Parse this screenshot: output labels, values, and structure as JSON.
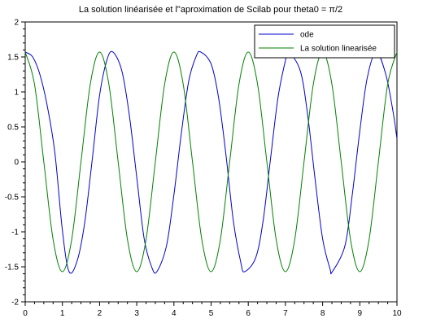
{
  "chart_data": {
    "type": "line",
    "title": "La solution linéarisée et l\"aproximation de Scilab pour theta0 = π/2",
    "xlabel": "",
    "ylabel": "",
    "xlim": [
      0,
      10
    ],
    "ylim": [
      -2,
      2
    ],
    "x_ticks": [
      "0",
      "1",
      "2",
      "3",
      "4",
      "5",
      "6",
      "7",
      "8",
      "9",
      "10"
    ],
    "y_ticks": [
      "2",
      "1.5",
      "1",
      "0.5",
      "0",
      "-0.5",
      "-1",
      "-1.5",
      "-2"
    ],
    "grid": false,
    "legend_position": "top-right",
    "series": [
      {
        "name": "ode",
        "color": "#0000cc",
        "x": [
          0,
          0.2,
          0.4,
          0.6,
          0.8,
          1.0,
          1.18,
          1.4,
          1.6,
          1.8,
          2.0,
          2.2,
          2.36,
          2.6,
          2.8,
          3.0,
          3.2,
          3.4,
          3.54,
          3.8,
          4.0,
          4.2,
          4.4,
          4.6,
          4.72,
          5.0,
          5.2,
          5.4,
          5.6,
          5.8,
          5.9,
          6.2,
          6.4,
          6.6,
          6.8,
          7.0,
          7.08,
          7.4,
          7.6,
          7.8,
          8.0,
          8.2,
          8.26,
          8.6,
          8.8,
          9.0,
          9.2,
          9.44,
          9.7,
          9.9,
          10.0
        ],
        "y": [
          1.57,
          1.5,
          1.24,
          0.78,
          0.12,
          -0.98,
          -1.57,
          -1.41,
          -0.87,
          0.02,
          0.95,
          1.46,
          1.57,
          1.3,
          0.67,
          -0.22,
          -1.1,
          -1.5,
          -1.57,
          -1.2,
          -0.47,
          0.41,
          1.16,
          1.51,
          1.57,
          1.4,
          0.92,
          0.1,
          -0.85,
          -1.44,
          -1.57,
          -1.37,
          -0.84,
          0.05,
          0.92,
          1.45,
          1.57,
          1.3,
          0.66,
          -0.26,
          -1.1,
          -1.53,
          -1.57,
          -1.2,
          -0.46,
          0.44,
          1.2,
          1.57,
          1.25,
          0.7,
          0.33
        ]
      },
      {
        "name": "La solution linearisée",
        "color": "#008000",
        "x": [
          0,
          0.25,
          0.5,
          0.75,
          1.0,
          1.25,
          1.5,
          1.75,
          2.0,
          2.25,
          2.5,
          2.75,
          3.0,
          3.25,
          3.5,
          3.75,
          4.0,
          4.25,
          4.5,
          4.75,
          5.0,
          5.25,
          5.5,
          5.75,
          6.0,
          6.25,
          6.5,
          6.75,
          7.0,
          7.25,
          7.5,
          7.75,
          8.0,
          8.25,
          8.5,
          8.75,
          9.0,
          9.25,
          9.5,
          9.75,
          10.0
        ],
        "y": [
          1.57,
          1.11,
          0.0,
          -1.11,
          -1.57,
          -1.11,
          0.0,
          1.11,
          1.57,
          1.11,
          0.0,
          -1.11,
          -1.57,
          -1.11,
          0.0,
          1.11,
          1.57,
          1.11,
          0.0,
          -1.11,
          -1.57,
          -1.11,
          0.0,
          1.11,
          1.57,
          1.11,
          0.0,
          -1.11,
          -1.57,
          -1.11,
          0.0,
          1.11,
          1.57,
          1.11,
          0.0,
          -1.11,
          -1.57,
          -1.11,
          0.0,
          1.11,
          1.57
        ]
      }
    ]
  }
}
